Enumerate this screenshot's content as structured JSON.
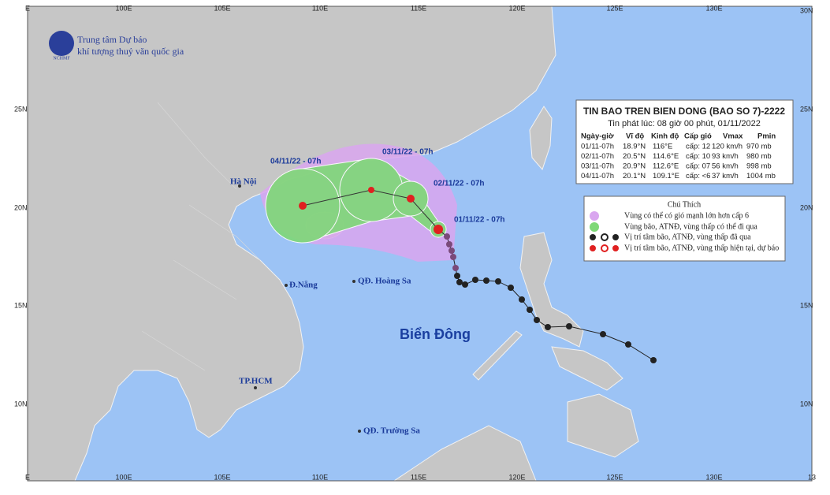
{
  "header": {
    "agency_line1": "Trung tâm Dự báo",
    "agency_line2": "khí tượng thuỷ văn quốc gia",
    "logo_text": "NCHMF"
  },
  "axes": {
    "top": [
      "E",
      "100E",
      "105E",
      "110E",
      "115E",
      "120E",
      "125E",
      "130E"
    ],
    "bottom": [
      "E",
      "100E",
      "105E",
      "110E",
      "115E",
      "120E",
      "125E",
      "130E",
      "13"
    ],
    "left": [
      "25N",
      "20N",
      "15N",
      "10N"
    ],
    "right": [
      "30N",
      "25N",
      "20N",
      "15N",
      "10N"
    ]
  },
  "places": {
    "hanoi": "Hà Nội",
    "danang": "Đ.Nẵng",
    "hoangsa": "QĐ. Hoàng Sa",
    "hcm": "TP.HCM",
    "truongsa": "QĐ. Trường Sa",
    "sea": "Biển Đông"
  },
  "track_labels": [
    "01/11/22 - 07h",
    "02/11/22 - 07h",
    "03/11/22 - 07h",
    "04/11/22 - 07h"
  ],
  "bulletin": {
    "title": "TIN BAO TREN BIEN DONG (BAO SO 7)-2222",
    "issued": "Tin phát lúc: 08 giờ 00 phút, 01/11/2022",
    "table": {
      "header": [
        "Ngày-giờ",
        "Vĩ độ",
        "Kinh độ",
        "Cấp gió",
        "Vmax",
        "Pmin"
      ],
      "rows": [
        [
          "01/11-07h",
          "18.9°N",
          "116°E",
          "cấp: 12",
          "120 km/h",
          "970 mb"
        ],
        [
          "02/11-07h",
          "20.5°N",
          "114.6°E",
          "cấp: 10",
          "93 km/h",
          "980 mb"
        ],
        [
          "03/11-07h",
          "20.9°N",
          "112.6°E",
          "cấp: 07",
          "56 km/h",
          "998 mb"
        ],
        [
          "04/11-07h",
          "20.1°N",
          "109.1°E",
          "cấp: <6",
          "37 km/h",
          "1004 mb"
        ]
      ]
    }
  },
  "legend": {
    "title": "Chú Thích",
    "items": [
      "Vùng có thể có gió mạnh lớn hơn cấp 6",
      "Vùng bão, ATNĐ, vùng thấp có thể đi qua",
      "Vị trí tâm bão, ATNĐ, vùng thấp đã qua",
      "Vị trí tâm bão, ATNĐ, vùng thấp hiện tại, dự báo"
    ]
  }
}
